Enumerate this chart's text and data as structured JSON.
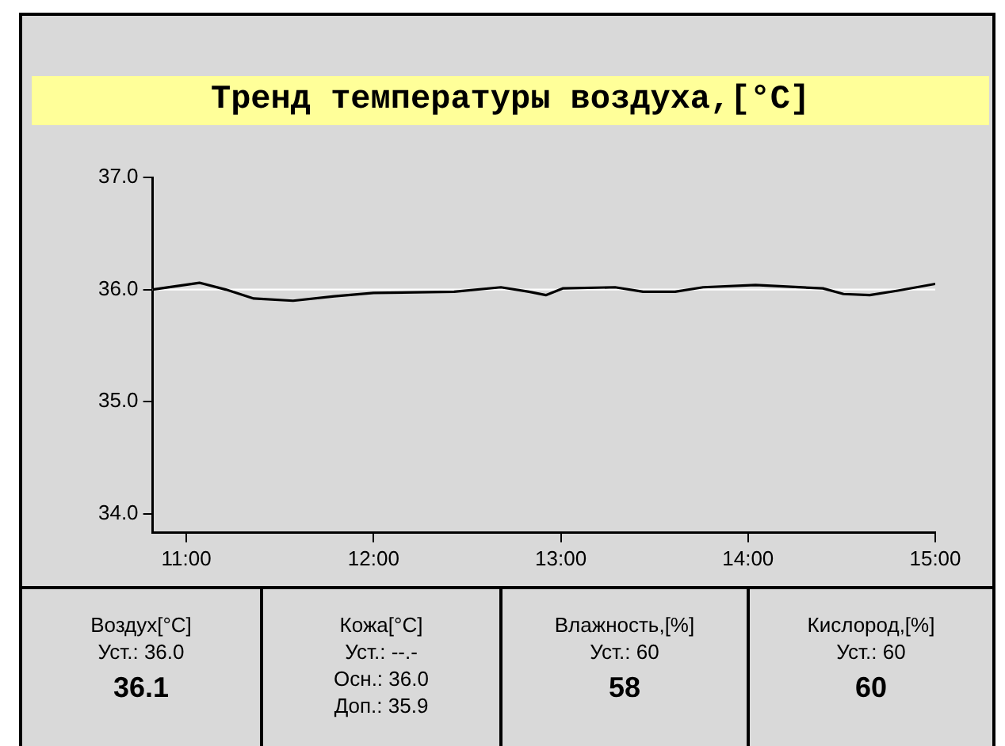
{
  "chart_data": [
    {
      "type": "line",
      "title": "Тренд температуры воздуха,[°C]",
      "x": [
        10.82,
        11.07,
        11.21,
        11.36,
        11.57,
        11.79,
        12.0,
        12.43,
        12.68,
        12.83,
        12.92,
        13.01,
        13.29,
        13.44,
        13.61,
        13.76,
        14.04,
        14.4,
        14.51,
        14.65,
        14.8,
        15.0
      ],
      "series": [
        {
          "color": "#000000",
          "values": [
            36.0,
            36.06,
            36.0,
            35.92,
            35.9,
            35.94,
            35.97,
            35.98,
            36.02,
            35.98,
            35.95,
            36.01,
            36.02,
            35.98,
            35.98,
            36.02,
            36.04,
            36.01,
            35.96,
            35.95,
            35.99,
            36.05
          ]
        }
      ],
      "xlim": [
        10.82,
        15.0
      ],
      "xticks": [
        {
          "value": 11,
          "label": "11:00"
        },
        {
          "value": 12,
          "label": "12:00"
        },
        {
          "value": 13,
          "label": "13:00"
        },
        {
          "value": 14,
          "label": "14:00"
        },
        {
          "value": 15,
          "label": "15:00"
        }
      ],
      "ylim": [
        33.83,
        37.0
      ],
      "yticks": [
        {
          "value": 34,
          "label": "34.0"
        },
        {
          "value": 35,
          "label": "35.0"
        },
        {
          "value": 36,
          "label": "36.0"
        },
        {
          "value": 37,
          "label": "37.0"
        }
      ],
      "ref_lines": [
        {
          "axis": "y",
          "value": 36,
          "color": "#ffffff"
        }
      ],
      "grid": false,
      "legend": false,
      "marker": "none",
      "line_style": "solid"
    },
    {
      "type": "other",
      "title": "Воздух[°C]",
      "annotations": [
        "Уст.: 36.0",
        "36.1"
      ]
    },
    {
      "type": "other",
      "title": "Кожа[°C]",
      "annotations": [
        "Уст.: --.-",
        "Осн.: 36.0",
        "Доп.: 35.9"
      ]
    },
    {
      "type": "other",
      "title": "Влажность,[%]",
      "annotations": [
        "Уст.: 60",
        "58"
      ]
    },
    {
      "type": "other",
      "title": "Кислород,[%]",
      "annotations": [
        "Уст.: 60",
        "60"
      ]
    }
  ]
}
